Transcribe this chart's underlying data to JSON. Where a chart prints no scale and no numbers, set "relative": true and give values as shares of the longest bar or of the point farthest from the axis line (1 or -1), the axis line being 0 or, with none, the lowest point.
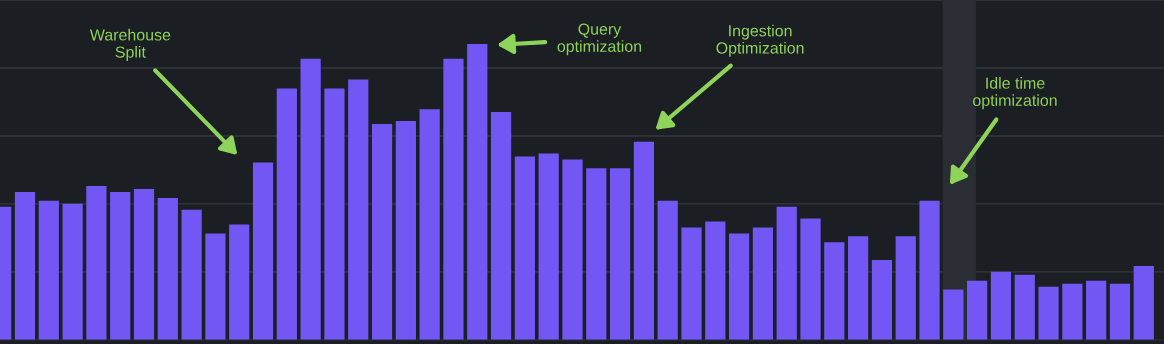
{
  "chart_data": {
    "type": "bar",
    "relative": true,
    "color": "#7357f5",
    "categories": [
      null,
      null,
      null,
      null,
      null,
      null,
      null,
      null,
      null,
      null,
      null,
      null,
      null,
      null,
      null,
      null,
      null,
      null,
      null,
      null,
      null,
      null,
      null,
      null,
      null,
      null,
      null,
      null,
      null,
      null,
      null,
      null,
      null,
      null,
      null,
      null,
      null,
      null,
      null,
      null,
      null,
      null,
      null,
      null,
      null,
      null,
      null,
      null,
      null
    ],
    "values": [
      0.45,
      0.5,
      0.47,
      0.46,
      0.52,
      0.5,
      0.51,
      0.48,
      0.44,
      0.36,
      0.39,
      0.6,
      0.85,
      0.95,
      0.85,
      0.88,
      0.73,
      0.74,
      0.78,
      0.95,
      1,
      0.77,
      0.62,
      0.63,
      0.61,
      0.58,
      0.58,
      0.67,
      0.47,
      0.38,
      0.4,
      0.36,
      0.38,
      0.45,
      0.41,
      0.33,
      0.35,
      0.27,
      0.35,
      0.47,
      0.17,
      0.2,
      0.23,
      0.22,
      0.18,
      0.19,
      0.2,
      0.19,
      0.25
    ],
    "grid": "y",
    "annotations": [
      "Warehouse\nSplit",
      "Query\noptimization",
      "Ingestion\nOptimization",
      "Idle time\noptimization"
    ]
  }
}
